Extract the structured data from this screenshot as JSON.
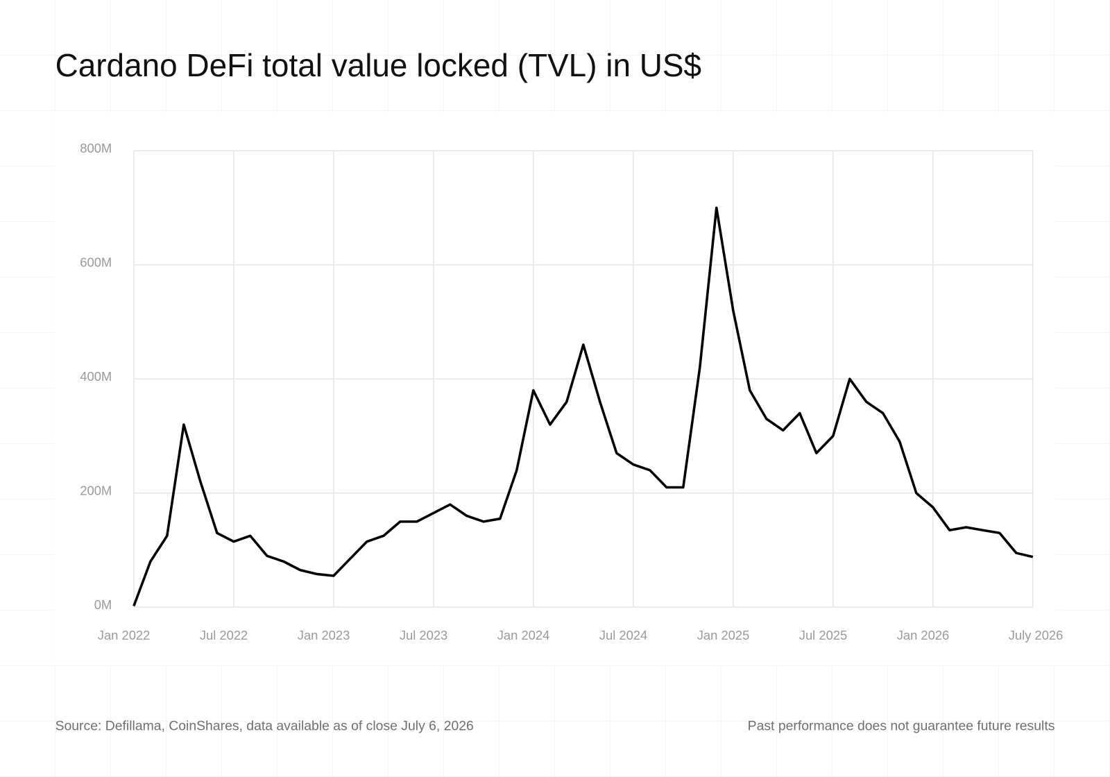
{
  "chart_data": {
    "type": "line",
    "title": "Cardano DeFi total value locked (TVL) in US$",
    "source": "Source: Defillama, CoinShares, data available as of close July 6, 2026",
    "disclaimer": "Past performance does not guarantee future results",
    "x": [
      "2022-01",
      "2022-02",
      "2022-03",
      "2022-04",
      "2022-05",
      "2022-06",
      "2022-07",
      "2022-08",
      "2022-09",
      "2022-10",
      "2022-11",
      "2022-12",
      "2023-01",
      "2023-02",
      "2023-03",
      "2023-04",
      "2023-05",
      "2023-06",
      "2023-07",
      "2023-08",
      "2023-09",
      "2023-10",
      "2023-11",
      "2023-12",
      "2024-01",
      "2024-02",
      "2024-03",
      "2024-04",
      "2024-05",
      "2024-06",
      "2024-07",
      "2024-08",
      "2024-09",
      "2024-10",
      "2024-11",
      "2024-12",
      "2025-01",
      "2025-02",
      "2025-03",
      "2025-04",
      "2025-05",
      "2025-06",
      "2025-07",
      "2025-08",
      "2025-09",
      "2025-10",
      "2025-11",
      "2025-12",
      "2026-01",
      "2026-02",
      "2026-03",
      "2026-04",
      "2026-05",
      "2026-06",
      "2026-07"
    ],
    "series": [
      {
        "name": "Cardano DeFi TVL",
        "color": "#000000",
        "values": [
          2000000,
          80000000,
          125000000,
          320000000,
          220000000,
          130000000,
          115000000,
          125000000,
          90000000,
          80000000,
          65000000,
          58000000,
          55000000,
          85000000,
          115000000,
          125000000,
          150000000,
          150000000,
          165000000,
          180000000,
          160000000,
          150000000,
          155000000,
          240000000,
          380000000,
          320000000,
          360000000,
          460000000,
          360000000,
          270000000,
          250000000,
          240000000,
          210000000,
          210000000,
          420000000,
          700000000,
          520000000,
          380000000,
          330000000,
          310000000,
          340000000,
          270000000,
          300000000,
          400000000,
          360000000,
          340000000,
          290000000,
          200000000,
          175000000,
          135000000,
          140000000,
          135000000,
          130000000,
          95000000,
          88000000
        ]
      }
    ],
    "xlim": [
      "2022-01",
      "2026-07"
    ],
    "xticks": [
      {
        "value": "2022-01",
        "label": "Jan 2022"
      },
      {
        "value": "2022-07",
        "label": "Jul 2022"
      },
      {
        "value": "2023-01",
        "label": "Jan 2023"
      },
      {
        "value": "2023-07",
        "label": "Jul 2023"
      },
      {
        "value": "2024-01",
        "label": "Jan 2024"
      },
      {
        "value": "2024-07",
        "label": "Jul 2024"
      },
      {
        "value": "2025-01",
        "label": "Jan 2025"
      },
      {
        "value": "2025-07",
        "label": "Jul 2025"
      },
      {
        "value": "2026-01",
        "label": "Jan 2026"
      },
      {
        "value": "2026-07",
        "label": "July 2026"
      }
    ],
    "ylim": [
      0,
      800000000
    ],
    "yticks": [
      {
        "value": 0,
        "label": "0M"
      },
      {
        "value": 200000000,
        "label": "200M"
      },
      {
        "value": 400000000,
        "label": "400M"
      },
      {
        "value": 600000000,
        "label": "600M"
      },
      {
        "value": 800000000,
        "label": "800M"
      }
    ],
    "grid": true
  }
}
